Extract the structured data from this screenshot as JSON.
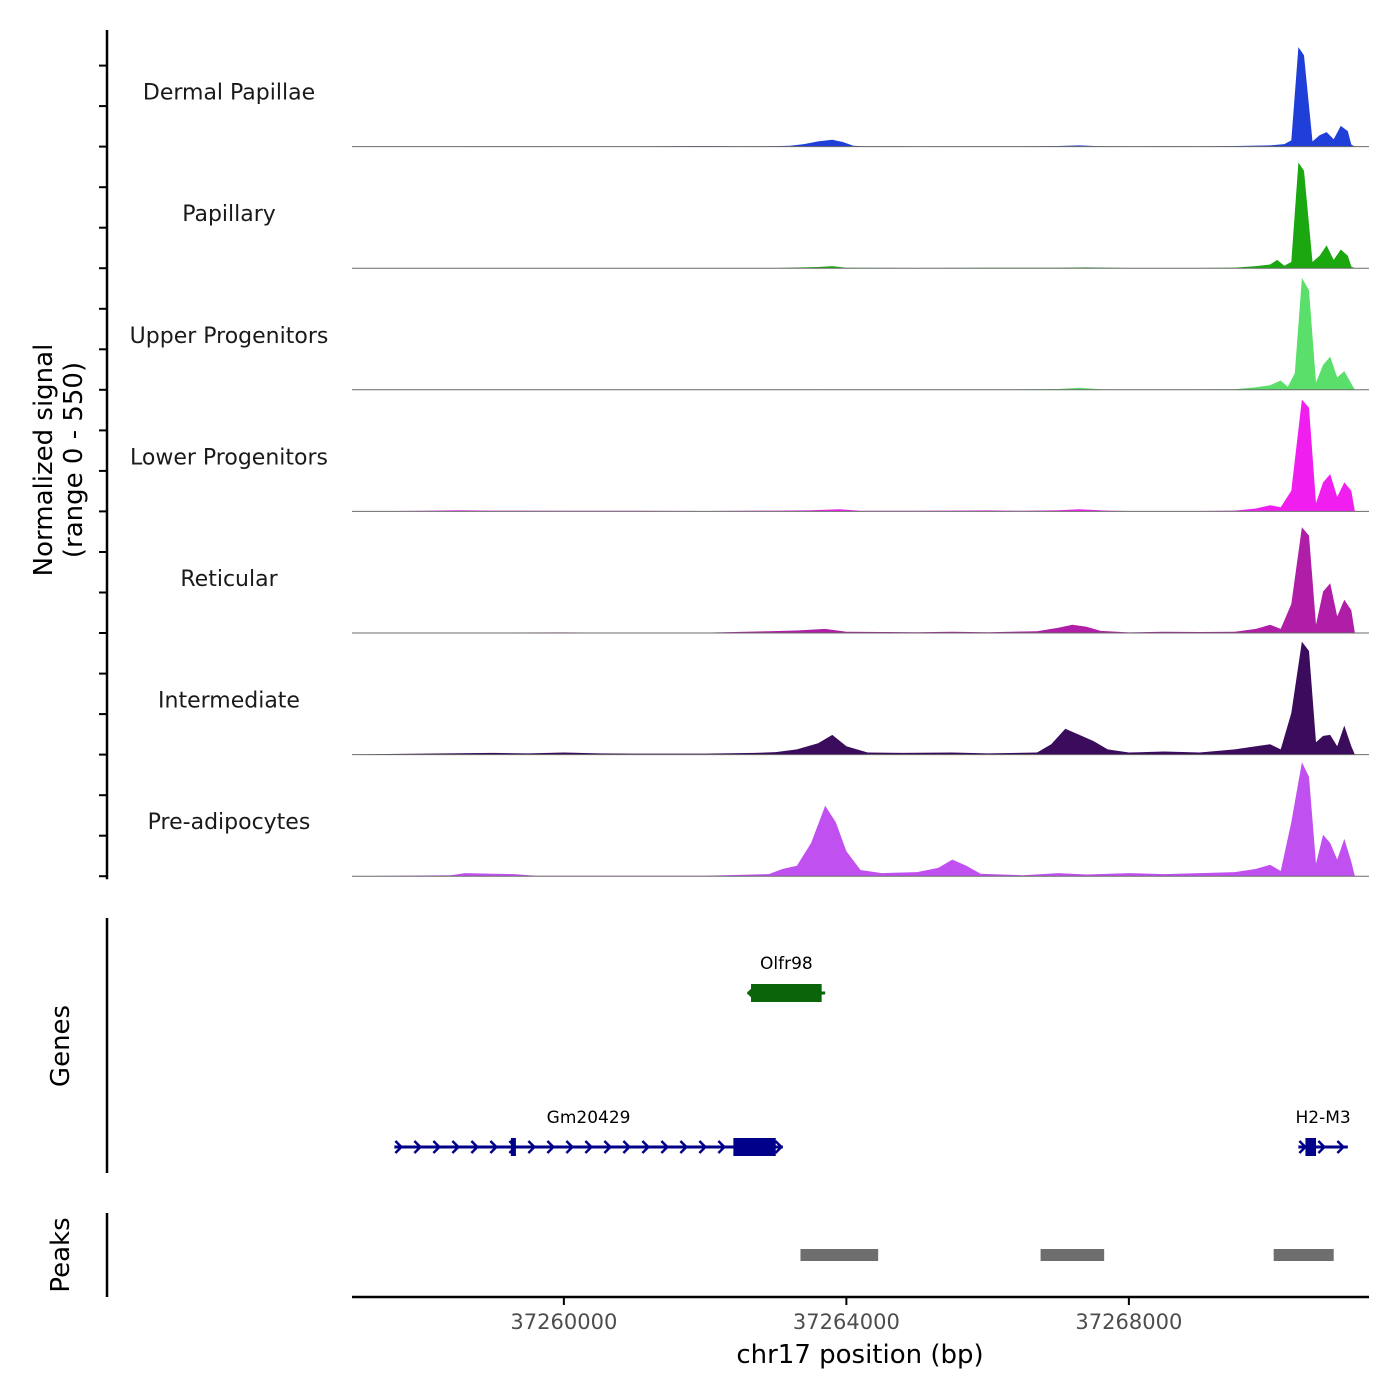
{
  "chart_data": {
    "type": "area",
    "title": "",
    "ylabel": "Normalized signal",
    "ylabel_range": "(range 0 - 550)",
    "ylim": [
      0,
      550
    ],
    "xlabel": "chr17 position (bp)",
    "xlim": [
      37257000,
      37271400
    ],
    "x_ticks": [
      37260000,
      37264000,
      37268000
    ],
    "x_tick_labels": [
      "37260000",
      "37264000",
      "37268000"
    ],
    "tracks": [
      {
        "name": "Dermal Papillae",
        "color": "#1f3fd8",
        "points": [
          [
            37257000,
            0
          ],
          [
            37258500,
            0.5
          ],
          [
            37259000,
            1
          ],
          [
            37260000,
            0.5
          ],
          [
            37261000,
            0.5
          ],
          [
            37262000,
            3
          ],
          [
            37262500,
            1
          ],
          [
            37262900,
            2
          ],
          [
            37263200,
            4
          ],
          [
            37263400,
            12
          ],
          [
            37263600,
            25
          ],
          [
            37263800,
            33
          ],
          [
            37263950,
            22
          ],
          [
            37264100,
            4
          ],
          [
            37264300,
            1
          ],
          [
            37264700,
            2
          ],
          [
            37265000,
            0.5
          ],
          [
            37266000,
            1
          ],
          [
            37266500,
            1
          ],
          [
            37267000,
            3
          ],
          [
            37267300,
            6
          ],
          [
            37267600,
            2
          ],
          [
            37268000,
            1
          ],
          [
            37268500,
            2
          ],
          [
            37269000,
            1
          ],
          [
            37269500,
            3
          ],
          [
            37270000,
            6
          ],
          [
            37270200,
            12
          ],
          [
            37270300,
            30
          ],
          [
            37270400,
            480
          ],
          [
            37270480,
            440
          ],
          [
            37270600,
            25
          ],
          [
            37270700,
            55
          ],
          [
            37270800,
            70
          ],
          [
            37270900,
            35
          ],
          [
            37271000,
            100
          ],
          [
            37271100,
            75
          ],
          [
            37271150,
            10
          ],
          [
            37271200,
            0
          ]
        ]
      },
      {
        "name": "Papillary",
        "color": "#1aa70f",
        "points": [
          [
            37257000,
            0
          ],
          [
            37258500,
            0.5
          ],
          [
            37259000,
            1
          ],
          [
            37260000,
            1
          ],
          [
            37261000,
            1
          ],
          [
            37262000,
            1
          ],
          [
            37263000,
            1
          ],
          [
            37263600,
            6
          ],
          [
            37263800,
            10
          ],
          [
            37264000,
            2
          ],
          [
            37265000,
            1
          ],
          [
            37266000,
            2
          ],
          [
            37267000,
            2
          ],
          [
            37267400,
            4
          ],
          [
            37268000,
            1
          ],
          [
            37269000,
            1
          ],
          [
            37269500,
            3
          ],
          [
            37269800,
            10
          ],
          [
            37270000,
            18
          ],
          [
            37270100,
            40
          ],
          [
            37270200,
            12
          ],
          [
            37270300,
            30
          ],
          [
            37270400,
            510
          ],
          [
            37270480,
            470
          ],
          [
            37270600,
            30
          ],
          [
            37270700,
            60
          ],
          [
            37270800,
            110
          ],
          [
            37270900,
            40
          ],
          [
            37271000,
            90
          ],
          [
            37271100,
            60
          ],
          [
            37271150,
            8
          ],
          [
            37271200,
            0
          ]
        ]
      },
      {
        "name": "Upper Progenitors",
        "color": "#5ae06a",
        "points": [
          [
            37257000,
            0
          ],
          [
            37258000,
            0.5
          ],
          [
            37259000,
            1
          ],
          [
            37260000,
            1
          ],
          [
            37261000,
            1
          ],
          [
            37262000,
            1
          ],
          [
            37263000,
            1
          ],
          [
            37263600,
            2
          ],
          [
            37264000,
            1
          ],
          [
            37265000,
            1
          ],
          [
            37266000,
            1
          ],
          [
            37267000,
            4
          ],
          [
            37267300,
            10
          ],
          [
            37267600,
            3
          ],
          [
            37268000,
            1
          ],
          [
            37269000,
            2
          ],
          [
            37269500,
            3
          ],
          [
            37269800,
            12
          ],
          [
            37270000,
            22
          ],
          [
            37270150,
            45
          ],
          [
            37270250,
            15
          ],
          [
            37270350,
            80
          ],
          [
            37270450,
            540
          ],
          [
            37270550,
            480
          ],
          [
            37270650,
            35
          ],
          [
            37270750,
            120
          ],
          [
            37270850,
            160
          ],
          [
            37270950,
            60
          ],
          [
            37271050,
            90
          ],
          [
            37271150,
            30
          ],
          [
            37271200,
            0
          ]
        ]
      },
      {
        "name": "Lower Progenitors",
        "color": "#f01ff0",
        "points": [
          [
            37257000,
            0
          ],
          [
            37258000,
            3
          ],
          [
            37258500,
            6
          ],
          [
            37259000,
            4
          ],
          [
            37260000,
            3
          ],
          [
            37261000,
            3
          ],
          [
            37262000,
            2
          ],
          [
            37263000,
            4
          ],
          [
            37263500,
            6
          ],
          [
            37263900,
            10
          ],
          [
            37264200,
            3
          ],
          [
            37265000,
            3
          ],
          [
            37266000,
            5
          ],
          [
            37266500,
            3
          ],
          [
            37267000,
            6
          ],
          [
            37267300,
            10
          ],
          [
            37267700,
            4
          ],
          [
            37268000,
            2
          ],
          [
            37269000,
            2
          ],
          [
            37269500,
            4
          ],
          [
            37269800,
            14
          ],
          [
            37270000,
            30
          ],
          [
            37270150,
            20
          ],
          [
            37270300,
            100
          ],
          [
            37270450,
            540
          ],
          [
            37270550,
            500
          ],
          [
            37270650,
            40
          ],
          [
            37270750,
            140
          ],
          [
            37270850,
            180
          ],
          [
            37270950,
            70
          ],
          [
            37271050,
            140
          ],
          [
            37271150,
            100
          ],
          [
            37271200,
            0
          ]
        ]
      },
      {
        "name": "Reticular",
        "color": "#b01ea8",
        "points": [
          [
            37257000,
            0
          ],
          [
            37258000,
            1
          ],
          [
            37259000,
            2
          ],
          [
            37260000,
            3
          ],
          [
            37261000,
            1
          ],
          [
            37262000,
            2
          ],
          [
            37262900,
            8
          ],
          [
            37263300,
            12
          ],
          [
            37263700,
            20
          ],
          [
            37264000,
            6
          ],
          [
            37264500,
            5
          ],
          [
            37265000,
            4
          ],
          [
            37265500,
            6
          ],
          [
            37266000,
            4
          ],
          [
            37266700,
            8
          ],
          [
            37267000,
            25
          ],
          [
            37267200,
            40
          ],
          [
            37267400,
            30
          ],
          [
            37267600,
            10
          ],
          [
            37268000,
            3
          ],
          [
            37268500,
            6
          ],
          [
            37269000,
            5
          ],
          [
            37269500,
            6
          ],
          [
            37269800,
            20
          ],
          [
            37270000,
            40
          ],
          [
            37270150,
            20
          ],
          [
            37270300,
            140
          ],
          [
            37270450,
            510
          ],
          [
            37270550,
            470
          ],
          [
            37270650,
            40
          ],
          [
            37270750,
            200
          ],
          [
            37270850,
            240
          ],
          [
            37270950,
            80
          ],
          [
            37271050,
            160
          ],
          [
            37271150,
            110
          ],
          [
            37271200,
            0
          ]
        ]
      },
      {
        "name": "Intermediate",
        "color": "#3b0b5c",
        "points": [
          [
            37257000,
            0
          ],
          [
            37257500,
            3
          ],
          [
            37258000,
            5
          ],
          [
            37259000,
            8
          ],
          [
            37259500,
            6
          ],
          [
            37260000,
            10
          ],
          [
            37260500,
            6
          ],
          [
            37261000,
            5
          ],
          [
            37262000,
            5
          ],
          [
            37262700,
            8
          ],
          [
            37263000,
            12
          ],
          [
            37263300,
            25
          ],
          [
            37263600,
            55
          ],
          [
            37263800,
            95
          ],
          [
            37264000,
            40
          ],
          [
            37264300,
            10
          ],
          [
            37264800,
            8
          ],
          [
            37265500,
            10
          ],
          [
            37266000,
            6
          ],
          [
            37266700,
            10
          ],
          [
            37266900,
            50
          ],
          [
            37267100,
            125
          ],
          [
            37267300,
            95
          ],
          [
            37267500,
            65
          ],
          [
            37267700,
            25
          ],
          [
            37268000,
            10
          ],
          [
            37268500,
            15
          ],
          [
            37269000,
            10
          ],
          [
            37269500,
            25
          ],
          [
            37269800,
            40
          ],
          [
            37270000,
            50
          ],
          [
            37270150,
            25
          ],
          [
            37270300,
            200
          ],
          [
            37270450,
            545
          ],
          [
            37270550,
            500
          ],
          [
            37270650,
            60
          ],
          [
            37270750,
            90
          ],
          [
            37270850,
            95
          ],
          [
            37270950,
            40
          ],
          [
            37271050,
            140
          ],
          [
            37271150,
            40
          ],
          [
            37271200,
            0
          ]
        ]
      },
      {
        "name": "Pre-adipocytes",
        "color": "#c050f0",
        "points": [
          [
            37257000,
            0
          ],
          [
            37258400,
            5
          ],
          [
            37258600,
            15
          ],
          [
            37259000,
            12
          ],
          [
            37259300,
            10
          ],
          [
            37259600,
            2
          ],
          [
            37260500,
            2
          ],
          [
            37262000,
            2
          ],
          [
            37262900,
            10
          ],
          [
            37263100,
            35
          ],
          [
            37263300,
            50
          ],
          [
            37263500,
            160
          ],
          [
            37263700,
            340
          ],
          [
            37263850,
            260
          ],
          [
            37264000,
            120
          ],
          [
            37264200,
            30
          ],
          [
            37264500,
            15
          ],
          [
            37265000,
            20
          ],
          [
            37265300,
            40
          ],
          [
            37265500,
            80
          ],
          [
            37265700,
            50
          ],
          [
            37265900,
            12
          ],
          [
            37266500,
            5
          ],
          [
            37267000,
            15
          ],
          [
            37267400,
            8
          ],
          [
            37268000,
            15
          ],
          [
            37268500,
            10
          ],
          [
            37269000,
            15
          ],
          [
            37269500,
            20
          ],
          [
            37269800,
            35
          ],
          [
            37270000,
            55
          ],
          [
            37270150,
            25
          ],
          [
            37270300,
            260
          ],
          [
            37270450,
            550
          ],
          [
            37270550,
            480
          ],
          [
            37270650,
            60
          ],
          [
            37270750,
            200
          ],
          [
            37270850,
            160
          ],
          [
            37270950,
            80
          ],
          [
            37271050,
            180
          ],
          [
            37271150,
            70
          ],
          [
            37271200,
            0
          ]
        ]
      }
    ],
    "genes_track_label": "Genes",
    "genes": [
      {
        "name": "Olfr98",
        "color": "#0a650a",
        "row": 1,
        "start": 37262600,
        "end": 37263700,
        "strand": "-",
        "exons": [
          [
            37262650,
            37263650
          ]
        ]
      },
      {
        "name": "Gm20429",
        "color": "#00008b",
        "row": 2,
        "start": 37257600,
        "end": 37263100,
        "strand": "+",
        "exons": [
          [
            37259250,
            37259300
          ],
          [
            37262400,
            37263000
          ]
        ]
      },
      {
        "name": "H2-M3",
        "color": "#00008b",
        "row": 2,
        "start": 37270400,
        "end": 37271100,
        "strand": "+",
        "exons": [
          [
            37270500,
            37270650
          ]
        ]
      }
    ],
    "peaks_track_label": "Peaks",
    "peaks_color": "#6e6e6e",
    "peaks": [
      {
        "start": 37263350,
        "end": 37264450
      },
      {
        "start": 37266750,
        "end": 37267650
      },
      {
        "start": 37270050,
        "end": 37270900
      }
    ]
  }
}
